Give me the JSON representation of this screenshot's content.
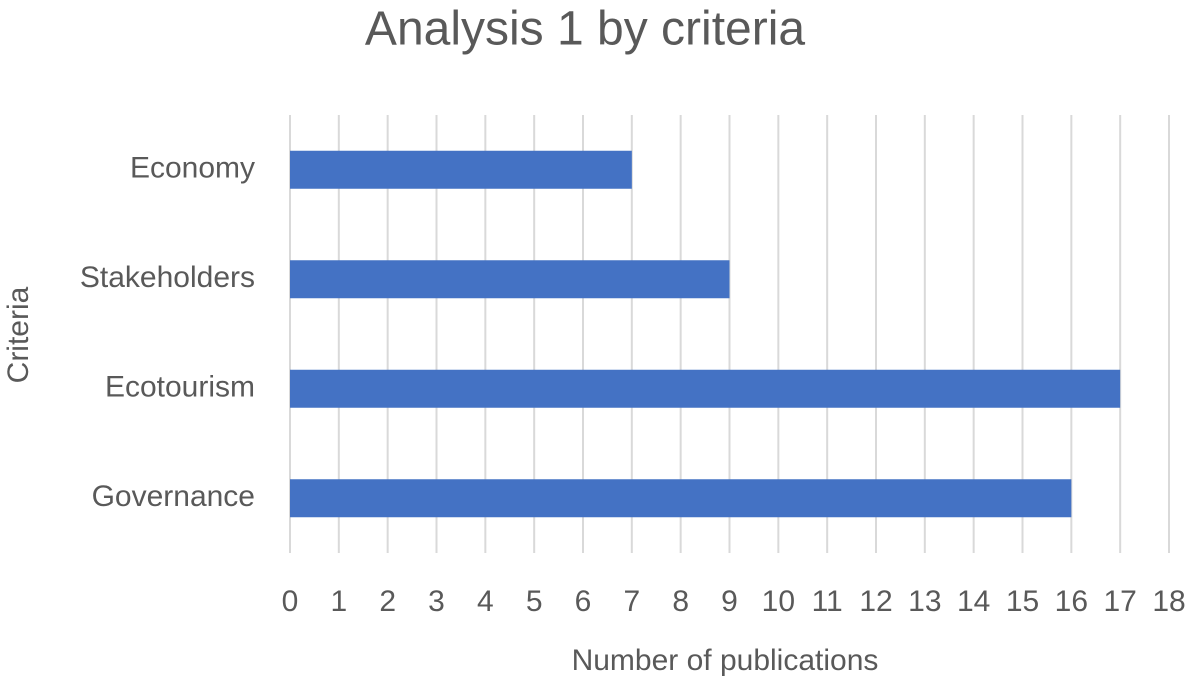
{
  "chart_data": {
    "type": "bar",
    "orientation": "horizontal",
    "title": "Analysis 1 by criteria",
    "x_label": "Number of publications",
    "y_label": "Criteria",
    "categories": [
      "Economy",
      "Stakeholders",
      "Ecotourism",
      "Governance"
    ],
    "values": [
      7,
      9,
      17,
      16
    ],
    "color": "#4472c4",
    "xlim": [
      0,
      18
    ],
    "xticks": [
      0,
      1,
      2,
      3,
      4,
      5,
      6,
      7,
      8,
      9,
      10,
      11,
      12,
      13,
      14,
      15,
      16,
      17,
      18
    ],
    "grid": true
  }
}
